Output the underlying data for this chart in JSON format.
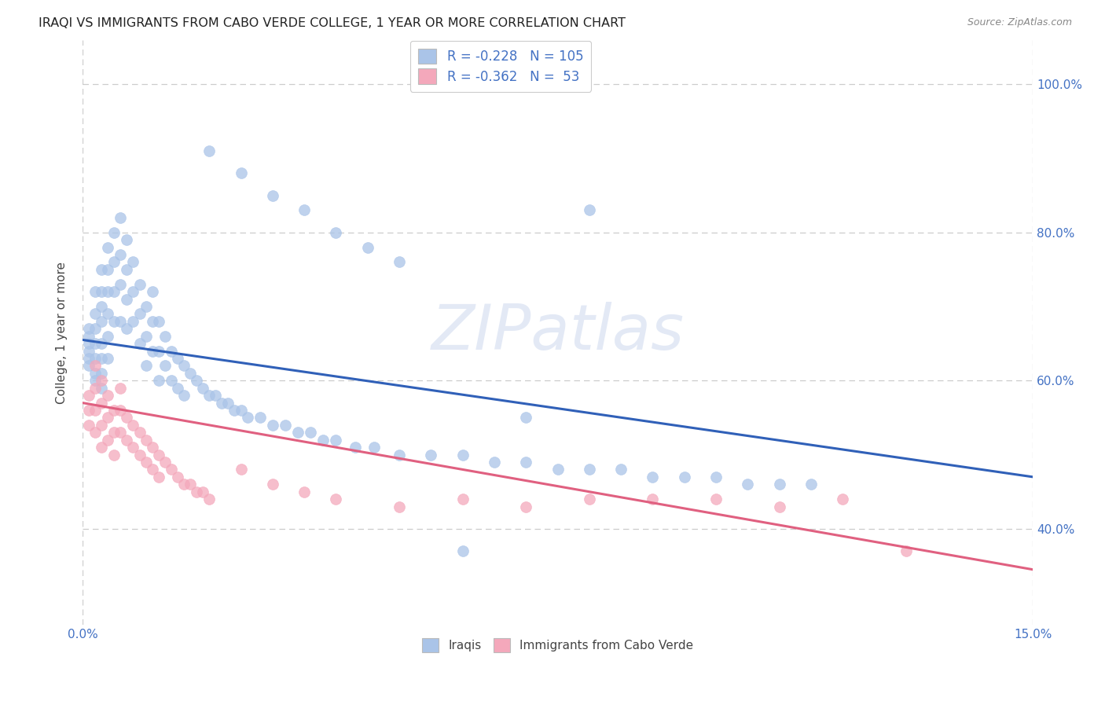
{
  "title": "IRAQI VS IMMIGRANTS FROM CABO VERDE COLLEGE, 1 YEAR OR MORE CORRELATION CHART",
  "source": "Source: ZipAtlas.com",
  "ylabel": "College, 1 year or more",
  "legend_label1": "Iraqis",
  "legend_label2": "Immigrants from Cabo Verde",
  "R1": "-0.228",
  "N1": "105",
  "R2": "-0.362",
  "N2": "53",
  "color1": "#aac4e8",
  "color2": "#f4a8bb",
  "line_color1": "#3060b8",
  "line_color2": "#e06080",
  "tick_color": "#4472c4",
  "xlim": [
    0.0,
    0.15
  ],
  "ylim": [
    0.27,
    1.06
  ],
  "blue_line_y0": 0.655,
  "blue_line_y1": 0.47,
  "pink_line_y0": 0.57,
  "pink_line_y1": 0.345,
  "watermark_text": "ZIPatlas",
  "iraqis_x": [
    0.001,
    0.001,
    0.001,
    0.001,
    0.001,
    0.001,
    0.002,
    0.002,
    0.002,
    0.002,
    0.002,
    0.002,
    0.002,
    0.003,
    0.003,
    0.003,
    0.003,
    0.003,
    0.003,
    0.003,
    0.003,
    0.004,
    0.004,
    0.004,
    0.004,
    0.004,
    0.004,
    0.005,
    0.005,
    0.005,
    0.005,
    0.006,
    0.006,
    0.006,
    0.006,
    0.007,
    0.007,
    0.007,
    0.007,
    0.008,
    0.008,
    0.008,
    0.009,
    0.009,
    0.009,
    0.01,
    0.01,
    0.01,
    0.011,
    0.011,
    0.011,
    0.012,
    0.012,
    0.012,
    0.013,
    0.013,
    0.014,
    0.014,
    0.015,
    0.015,
    0.016,
    0.016,
    0.017,
    0.018,
    0.019,
    0.02,
    0.021,
    0.022,
    0.023,
    0.024,
    0.025,
    0.026,
    0.028,
    0.03,
    0.032,
    0.034,
    0.036,
    0.038,
    0.04,
    0.043,
    0.046,
    0.05,
    0.055,
    0.06,
    0.065,
    0.07,
    0.075,
    0.08,
    0.085,
    0.09,
    0.095,
    0.1,
    0.105,
    0.11,
    0.115,
    0.02,
    0.025,
    0.03,
    0.035,
    0.04,
    0.045,
    0.05,
    0.06,
    0.07,
    0.08
  ],
  "iraqis_y": [
    0.67,
    0.66,
    0.65,
    0.64,
    0.63,
    0.62,
    0.72,
    0.69,
    0.67,
    0.65,
    0.63,
    0.61,
    0.6,
    0.75,
    0.72,
    0.7,
    0.68,
    0.65,
    0.63,
    0.61,
    0.59,
    0.78,
    0.75,
    0.72,
    0.69,
    0.66,
    0.63,
    0.8,
    0.76,
    0.72,
    0.68,
    0.82,
    0.77,
    0.73,
    0.68,
    0.79,
    0.75,
    0.71,
    0.67,
    0.76,
    0.72,
    0.68,
    0.73,
    0.69,
    0.65,
    0.7,
    0.66,
    0.62,
    0.72,
    0.68,
    0.64,
    0.68,
    0.64,
    0.6,
    0.66,
    0.62,
    0.64,
    0.6,
    0.63,
    0.59,
    0.62,
    0.58,
    0.61,
    0.6,
    0.59,
    0.58,
    0.58,
    0.57,
    0.57,
    0.56,
    0.56,
    0.55,
    0.55,
    0.54,
    0.54,
    0.53,
    0.53,
    0.52,
    0.52,
    0.51,
    0.51,
    0.5,
    0.5,
    0.5,
    0.49,
    0.49,
    0.48,
    0.48,
    0.48,
    0.47,
    0.47,
    0.47,
    0.46,
    0.46,
    0.46,
    0.91,
    0.88,
    0.85,
    0.83,
    0.8,
    0.78,
    0.76,
    0.37,
    0.55,
    0.83
  ],
  "cabo_x": [
    0.001,
    0.001,
    0.001,
    0.002,
    0.002,
    0.002,
    0.002,
    0.003,
    0.003,
    0.003,
    0.003,
    0.004,
    0.004,
    0.004,
    0.005,
    0.005,
    0.005,
    0.006,
    0.006,
    0.006,
    0.007,
    0.007,
    0.008,
    0.008,
    0.009,
    0.009,
    0.01,
    0.01,
    0.011,
    0.011,
    0.012,
    0.012,
    0.013,
    0.014,
    0.015,
    0.016,
    0.017,
    0.018,
    0.019,
    0.02,
    0.025,
    0.03,
    0.035,
    0.04,
    0.05,
    0.06,
    0.07,
    0.08,
    0.09,
    0.1,
    0.11,
    0.12,
    0.13
  ],
  "cabo_y": [
    0.58,
    0.56,
    0.54,
    0.62,
    0.59,
    0.56,
    0.53,
    0.6,
    0.57,
    0.54,
    0.51,
    0.58,
    0.55,
    0.52,
    0.56,
    0.53,
    0.5,
    0.59,
    0.56,
    0.53,
    0.55,
    0.52,
    0.54,
    0.51,
    0.53,
    0.5,
    0.52,
    0.49,
    0.51,
    0.48,
    0.5,
    0.47,
    0.49,
    0.48,
    0.47,
    0.46,
    0.46,
    0.45,
    0.45,
    0.44,
    0.48,
    0.46,
    0.45,
    0.44,
    0.43,
    0.44,
    0.43,
    0.44,
    0.44,
    0.44,
    0.43,
    0.44,
    0.37
  ]
}
